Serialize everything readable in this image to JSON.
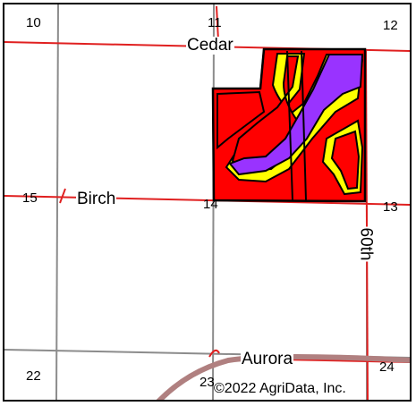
{
  "map": {
    "sections": [
      "10",
      "11",
      "12",
      "15",
      "14",
      "13",
      "22",
      "23",
      "24"
    ],
    "roads": {
      "cedar": "Cedar",
      "birch": "Birch",
      "aurora": "Aurora",
      "sixtieth": "60th"
    },
    "copyright": "©2022 AgriData, Inc.",
    "colors": {
      "road_line": "#e02020",
      "section_line": "#8c8c8c",
      "highway": "#b08080",
      "zone_red": "#ff0000",
      "zone_yellow": "#ffff00",
      "zone_purple": "#9933ff",
      "boundary": "#000000"
    }
  }
}
